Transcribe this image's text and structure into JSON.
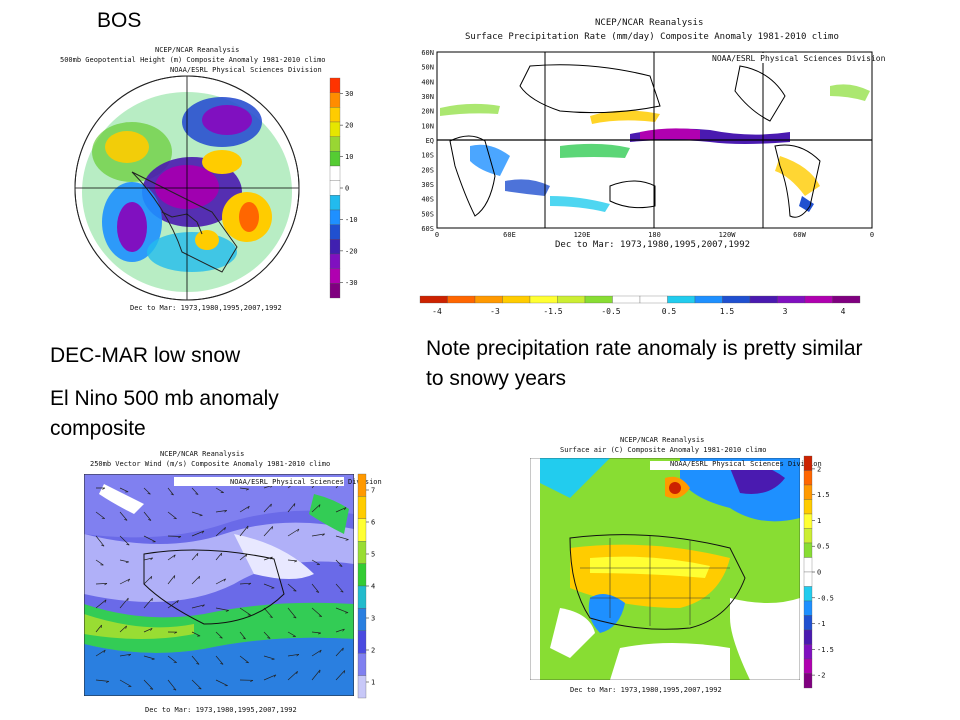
{
  "slide": {
    "title": "BOS",
    "caption_left": "DEC-MAR low snow",
    "caption_left2": "El Nino 500 mb anomaly composite",
    "caption_right": "Note precipitation rate anomaly is pretty similar to snowy years"
  },
  "map_500mb": {
    "title1": "NCEP/NCAR Reanalysis",
    "title2": "500mb Geopotential Height (m) Composite Anomaly 1981-2010 climo",
    "title3": "NOAA/ESRL Physical Sciences Division",
    "footer": "Dec to Mar: 1973,1980,1995,2007,1992",
    "colorbar": {
      "ticks": [
        "30",
        "20",
        "10",
        "0",
        "-10",
        "-20",
        "-30"
      ],
      "colors": [
        "#ff3300",
        "#ff8c00",
        "#ffcc00",
        "#e6e600",
        "#99d633",
        "#55cc33",
        "#ffffff",
        "#ffffff",
        "#22bbee",
        "#1e90ff",
        "#2050d0",
        "#4020b0",
        "#8010c0",
        "#b000b0",
        "#800080"
      ]
    }
  },
  "map_precip": {
    "title1": "NCEP/NCAR Reanalysis",
    "title2": "Surface Precipitation Rate (mm/day) Composite Anomaly 1981-2010 climo",
    "title3": "NOAA/ESRL Physical Sciences Division",
    "footer": "Dec to Mar: 1973,1980,1995,2007,1992",
    "lat_labels": [
      "60N",
      "50N",
      "40N",
      "30N",
      "20N",
      "10N",
      "EQ",
      "10S",
      "20S",
      "30S",
      "40S",
      "50S",
      "60S"
    ],
    "lon_labels": [
      "0",
      "60E",
      "120E",
      "180",
      "120W",
      "60W",
      "0"
    ],
    "colorbar": {
      "ticks": [
        "-4",
        "-3",
        "-1.5",
        "-0.5",
        "0.5",
        "1.5",
        "3",
        "4"
      ],
      "colors": [
        "#cc2200",
        "#ff6600",
        "#ff9900",
        "#ffcc00",
        "#ffff33",
        "#ccee33",
        "#88dd33",
        "#ffffff",
        "#ffffff",
        "#22ccee",
        "#1e90ff",
        "#2050d0",
        "#4a1ab0",
        "#8010c0",
        "#b000b0",
        "#800080"
      ]
    }
  },
  "map_wind": {
    "title1": "NCEP/NCAR Reanalysis",
    "title2": "250mb Vector Wind (m/s) Composite Anomaly 1981-2010 climo",
    "title3": "NOAA/ESRL Physical Sciences Division",
    "footer": "Dec to Mar: 1973,1980,1995,2007,1992",
    "colorbar": {
      "ticks": [
        "7",
        "6",
        "5",
        "4",
        "3",
        "2",
        "1"
      ],
      "colors": [
        "#ff9900",
        "#ffcc00",
        "#ffff33",
        "#99dd33",
        "#33cc33",
        "#22bbcc",
        "#2a7fe0",
        "#4a4ae0",
        "#8080f0",
        "#c8c8f8"
      ]
    }
  },
  "map_sfcair": {
    "title1": "NCEP/NCAR Reanalysis",
    "title2": "Surface air (C) Composite Anomaly 1981-2010 climo",
    "title3": "NOAA/ESRL Physical Sciences Division",
    "footer": "Dec to Mar: 1973,1980,1995,2007,1992",
    "colorbar": {
      "ticks": [
        "2",
        "1.5",
        "1",
        "0.5",
        "0",
        "-0.5",
        "-1",
        "-1.5",
        "-2"
      ],
      "colors": [
        "#cc2200",
        "#ff6600",
        "#ff9900",
        "#ffcc00",
        "#ffff33",
        "#ccee33",
        "#88dd33",
        "#ffffff",
        "#ffffff",
        "#22ccee",
        "#1e90ff",
        "#2050d0",
        "#4a1ab0",
        "#8010c0",
        "#b000b0",
        "#800080"
      ]
    }
  }
}
